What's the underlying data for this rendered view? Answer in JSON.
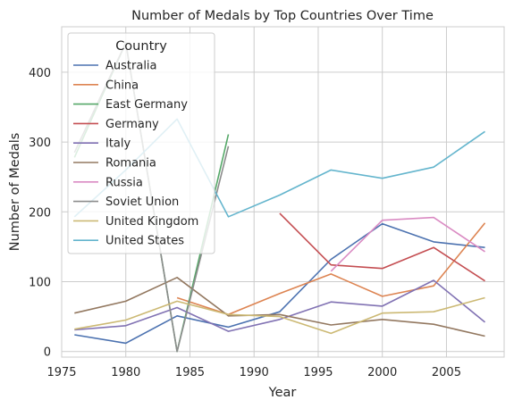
{
  "chart_data": {
    "type": "line",
    "title": "Number of Medals by Top Countries Over Time",
    "xlabel": "Year",
    "ylabel": "Number of Medals",
    "xlim": [
      1975,
      2009.5
    ],
    "ylim": [
      -8,
      465
    ],
    "xticks": [
      1975,
      1980,
      1985,
      1990,
      1995,
      2000,
      2005
    ],
    "yticks": [
      0,
      100,
      200,
      300,
      400
    ],
    "grid": true,
    "legend": {
      "title": "Country",
      "placement": "top-left"
    },
    "series": [
      {
        "name": "Australia",
        "color": "#4c72b0",
        "points": [
          [
            1976,
            24
          ],
          [
            1980,
            12
          ],
          [
            1984,
            51
          ],
          [
            1988,
            35
          ],
          [
            1992,
            57
          ],
          [
            1996,
            132
          ],
          [
            2000,
            183
          ],
          [
            2004,
            157
          ],
          [
            2008,
            149
          ]
        ]
      },
      {
        "name": "China",
        "color": "#dd8452",
        "points": [
          [
            1984,
            77
          ],
          [
            1988,
            53
          ],
          [
            1992,
            83
          ],
          [
            1996,
            111
          ],
          [
            2000,
            79
          ],
          [
            2004,
            94
          ],
          [
            2008,
            184
          ]
        ]
      },
      {
        "name": "East Germany",
        "color": "#55a868",
        "points": [
          [
            1976,
            278
          ],
          [
            1980,
            442
          ],
          [
            1984,
            0
          ],
          [
            1988,
            311
          ]
        ]
      },
      {
        "name": "Germany",
        "color": "#c44e52",
        "points": [
          [
            1992,
            198
          ],
          [
            1996,
            124
          ],
          [
            2000,
            119
          ],
          [
            2004,
            149
          ],
          [
            2008,
            101
          ]
        ]
      },
      {
        "name": "Italy",
        "color": "#8172b3",
        "points": [
          [
            1976,
            31
          ],
          [
            1980,
            37
          ],
          [
            1984,
            63
          ],
          [
            1988,
            29
          ],
          [
            1992,
            46
          ],
          [
            1996,
            71
          ],
          [
            2000,
            65
          ],
          [
            2004,
            102
          ],
          [
            2008,
            42
          ]
        ]
      },
      {
        "name": "Romania",
        "color": "#937860",
        "points": [
          [
            1976,
            55
          ],
          [
            1980,
            72
          ],
          [
            1984,
            106
          ],
          [
            1988,
            51
          ],
          [
            1992,
            53
          ],
          [
            1996,
            38
          ],
          [
            2000,
            46
          ],
          [
            2004,
            39
          ],
          [
            2008,
            22
          ]
        ]
      },
      {
        "name": "Russia",
        "color": "#da8bc3",
        "points": [
          [
            1996,
            115
          ],
          [
            2000,
            188
          ],
          [
            2004,
            192
          ],
          [
            2008,
            143
          ]
        ]
      },
      {
        "name": "Soviet Union",
        "color": "#8c8c8c",
        "points": [
          [
            1976,
            285
          ],
          [
            1980,
            442
          ],
          [
            1984,
            0
          ],
          [
            1988,
            294
          ]
        ]
      },
      {
        "name": "United Kingdom",
        "color": "#ccb974",
        "points": [
          [
            1976,
            32
          ],
          [
            1980,
            45
          ],
          [
            1984,
            72
          ],
          [
            1988,
            53
          ],
          [
            1992,
            50
          ],
          [
            1996,
            26
          ],
          [
            2000,
            55
          ],
          [
            2004,
            57
          ],
          [
            2008,
            77
          ]
        ]
      },
      {
        "name": "United States",
        "color": "#64b5cd",
        "points": [
          [
            1976,
            193
          ],
          [
            1980,
            260
          ],
          [
            1984,
            333
          ],
          [
            1988,
            193
          ],
          [
            1992,
            224
          ],
          [
            1996,
            260
          ],
          [
            2000,
            248
          ],
          [
            2004,
            264
          ],
          [
            2008,
            315
          ]
        ]
      }
    ]
  }
}
